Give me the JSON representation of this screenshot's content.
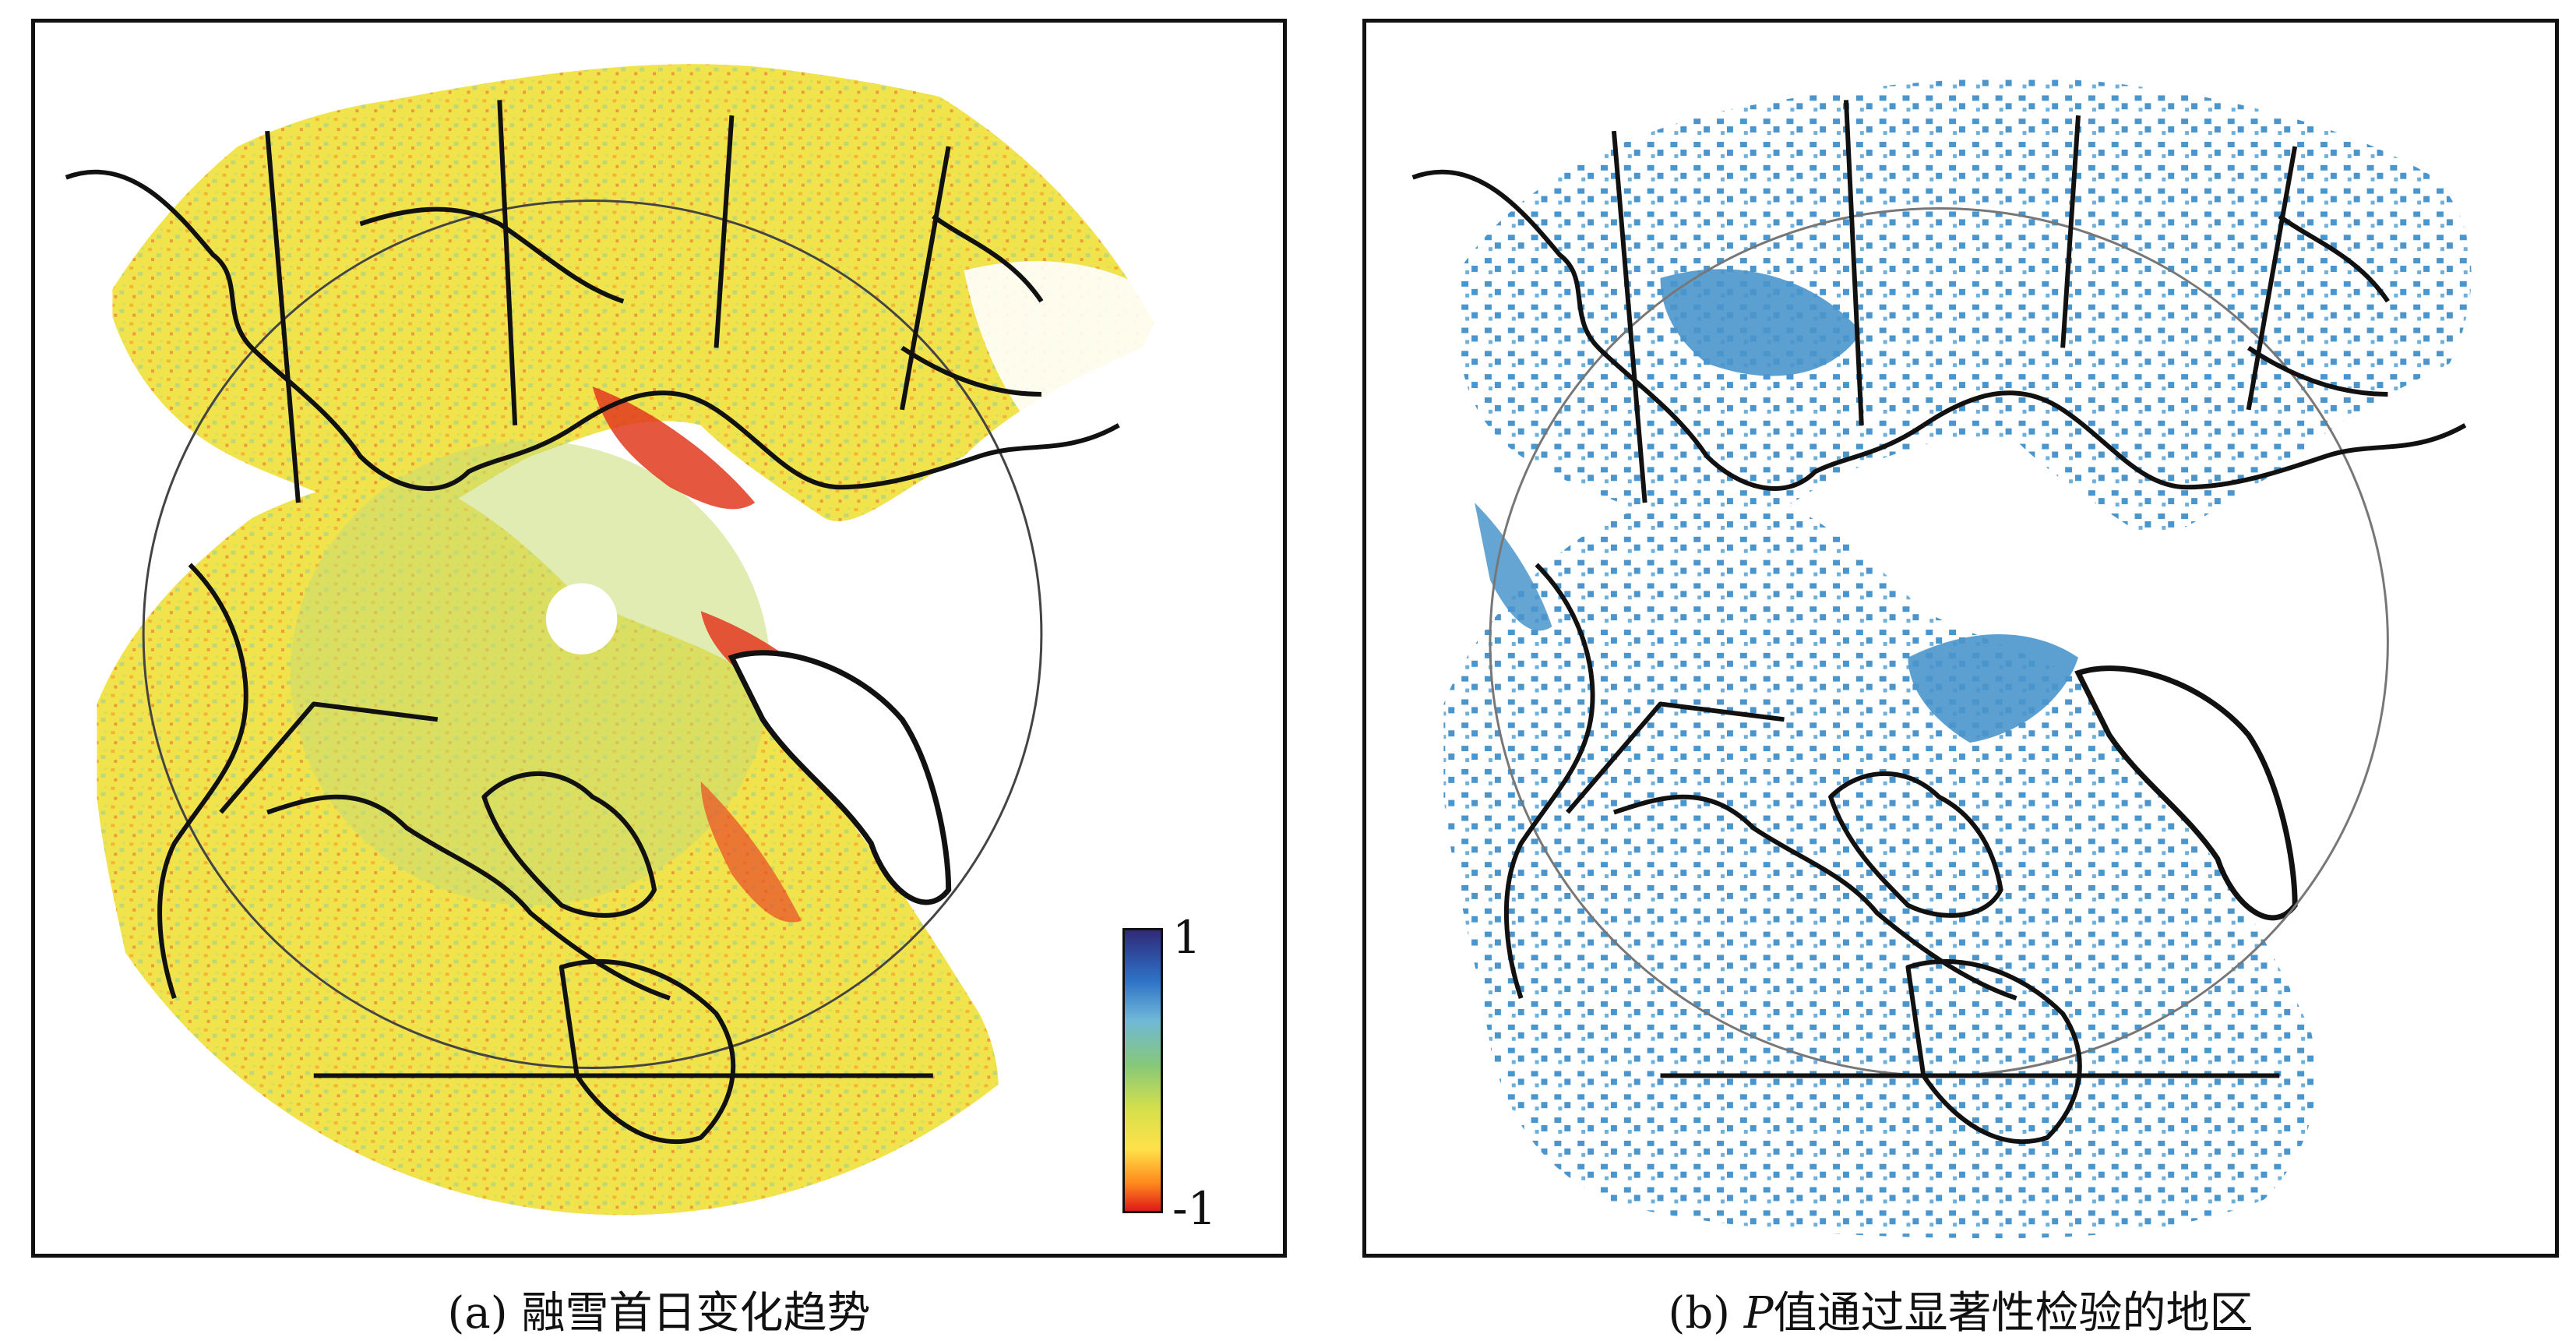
{
  "panel_a": {
    "caption_prefix": "(a) ",
    "caption_text": "融雪首日变化趋势",
    "colorbar": {
      "max_label": "1",
      "min_label": "-1",
      "colors": [
        "#2f2a7a",
        "#2e72c6",
        "#6fb8d8",
        "#86c879",
        "#d7e04a",
        "#ffe14a",
        "#ff8a1c",
        "#e01a1a"
      ]
    }
  },
  "panel_b": {
    "caption_prefix": "(b) ",
    "caption_p": "P",
    "caption_text": "值通过显著性检验的地区",
    "significant_color": "#4a95cc"
  },
  "colors": {
    "land_yellow": "#f3e64a",
    "land_green": "#a8d48a",
    "land_orange": "#f08a2a",
    "land_red": "#e23a1e",
    "coastline": "#111111"
  }
}
